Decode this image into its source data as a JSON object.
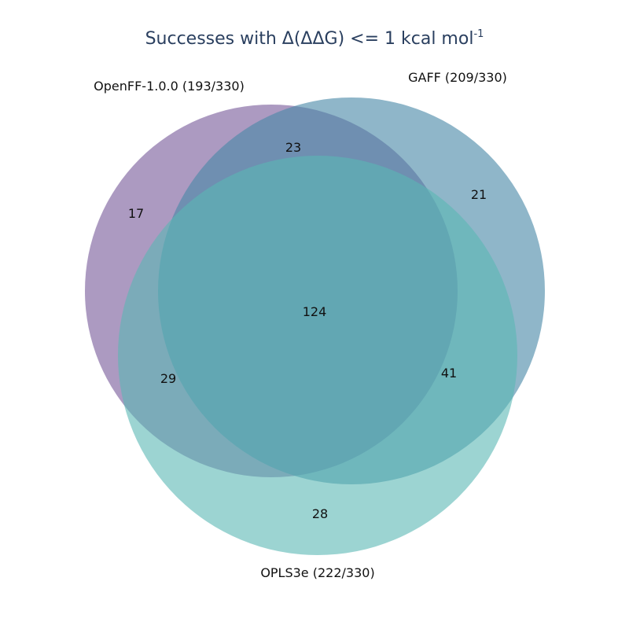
{
  "title": {
    "main": "Successes with Δ(ΔΔG) <= 1 kcal mol",
    "superscript": "-1"
  },
  "sets": [
    {
      "id": "openff",
      "label": "OpenFF-1.0.0 (193/330)",
      "color": "#7f64a0"
    },
    {
      "id": "gaff",
      "label": "GAFF (209/330)",
      "color": "#4b89a8"
    },
    {
      "id": "opls",
      "label": "OPLS3e (222/330)",
      "color": "#5ab8b4"
    }
  ],
  "regions": {
    "openff_only": "17",
    "gaff_only": "21",
    "opls_only": "28",
    "openff_gaff": "23",
    "openff_opls": "29",
    "gaff_opls": "41",
    "all_three": "124"
  }
}
